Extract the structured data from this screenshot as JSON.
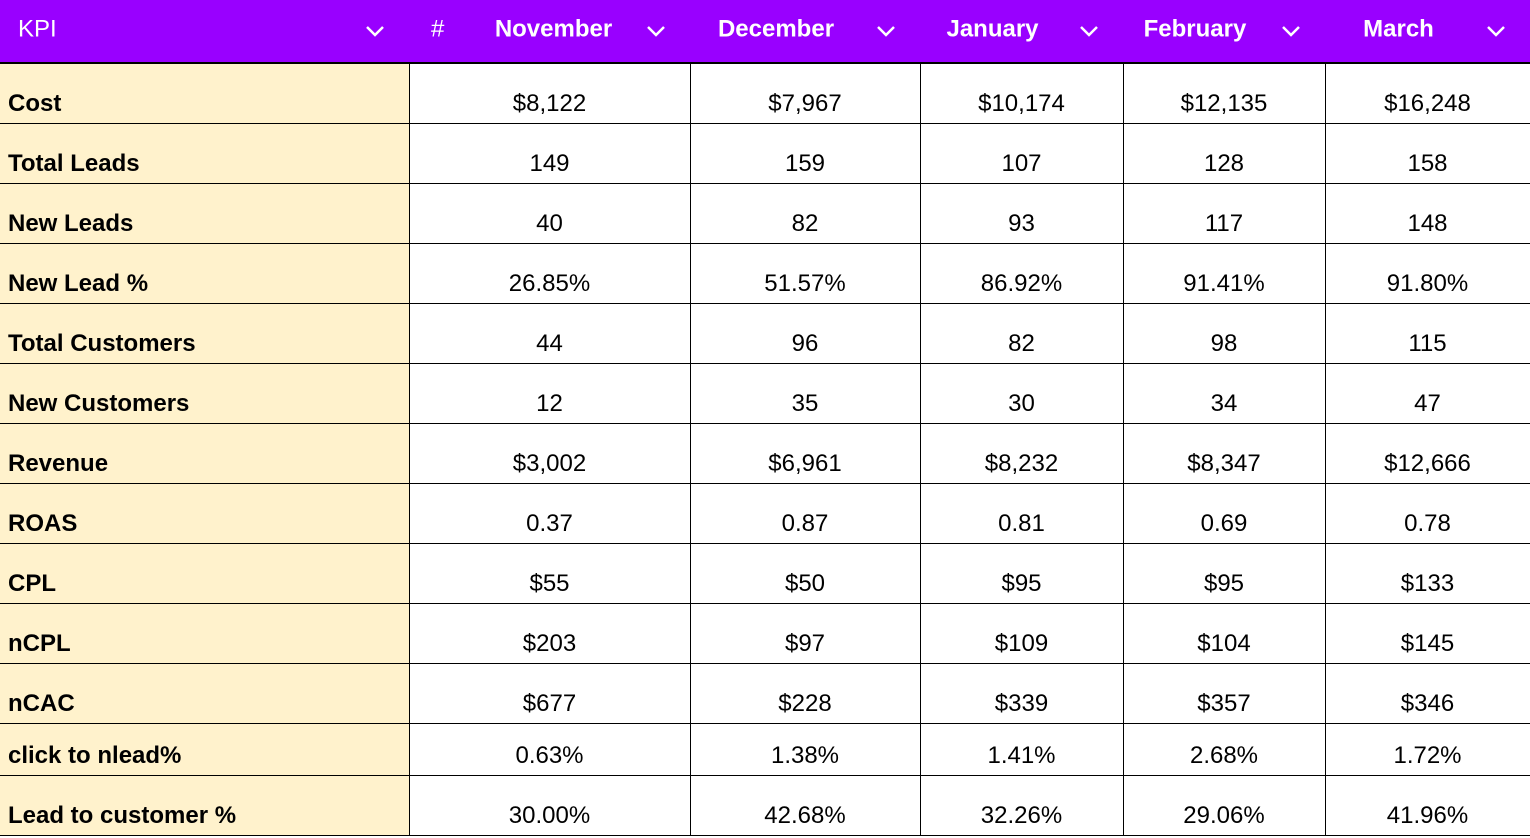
{
  "header": {
    "kpi_label": "KPI",
    "hash_symbol": "#",
    "months": [
      "November",
      "December",
      "January",
      "February",
      "March"
    ]
  },
  "colors": {
    "header_bg": "#9900ff",
    "header_text": "#ffffff",
    "kpi_column_bg": "#fff2cc",
    "grid_line": "#000000"
  },
  "icons": {
    "dropdown": "chevron-down-icon"
  },
  "rows": [
    {
      "kpi": "Cost",
      "values": [
        "$8,122",
        "$7,967",
        "$10,174",
        "$12,135",
        "$16,248"
      ]
    },
    {
      "kpi": "Total Leads",
      "values": [
        "149",
        "159",
        "107",
        "128",
        "158"
      ]
    },
    {
      "kpi": "New Leads",
      "values": [
        "40",
        "82",
        "93",
        "117",
        "148"
      ]
    },
    {
      "kpi": "New Lead %",
      "values": [
        "26.85%",
        "51.57%",
        "86.92%",
        "91.41%",
        "91.80%"
      ]
    },
    {
      "kpi": "Total Customers",
      "values": [
        "44",
        "96",
        "82",
        "98",
        "115"
      ]
    },
    {
      "kpi": "New Customers",
      "values": [
        "12",
        "35",
        "30",
        "34",
        "47"
      ]
    },
    {
      "kpi": "Revenue",
      "values": [
        "$3,002",
        "$6,961",
        "$8,232",
        "$8,347",
        "$12,666"
      ]
    },
    {
      "kpi": "ROAS",
      "values": [
        "0.37",
        "0.87",
        "0.81",
        "0.69",
        "0.78"
      ]
    },
    {
      "kpi": "CPL",
      "values": [
        "$55",
        "$50",
        "$95",
        "$95",
        "$133"
      ]
    },
    {
      "kpi": "nCPL",
      "values": [
        "$203",
        "$97",
        "$109",
        "$104",
        "$145"
      ]
    },
    {
      "kpi": "nCAC",
      "values": [
        "$677",
        "$228",
        "$339",
        "$357",
        "$346"
      ]
    },
    {
      "kpi": "click to nlead%",
      "values": [
        "0.63%",
        "1.38%",
        "1.41%",
        "2.68%",
        "1.72%"
      ]
    },
    {
      "kpi": "Lead to customer %",
      "values": [
        "30.00%",
        "42.68%",
        "32.26%",
        "29.06%",
        "41.96%"
      ]
    }
  ]
}
